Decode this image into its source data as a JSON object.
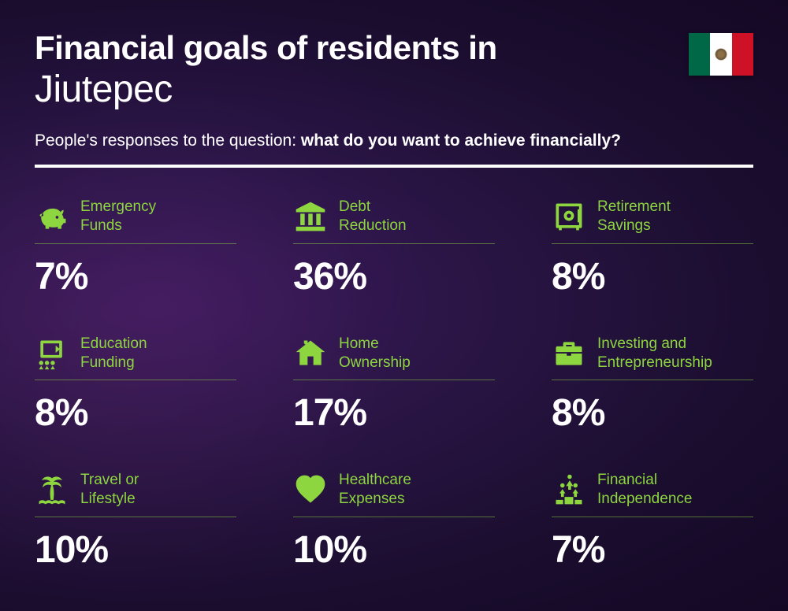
{
  "header": {
    "title_bold": "Financial goals of residents in",
    "title_light": "Jiutepec",
    "subtitle_prefix": "People's responses to the question: ",
    "subtitle_bold": "what do you want to achieve financially?"
  },
  "flag": {
    "left_color": "#006847",
    "middle_color": "#ffffff",
    "right_color": "#ce1126"
  },
  "accent_color": "#8dd63f",
  "items": [
    {
      "icon": "piggy-bank",
      "label_line1": "Emergency",
      "label_line2": "Funds",
      "percent": "7%"
    },
    {
      "icon": "bank",
      "label_line1": "Debt",
      "label_line2": "Reduction",
      "percent": "36%"
    },
    {
      "icon": "safe",
      "label_line1": "Retirement",
      "label_line2": "Savings",
      "percent": "8%"
    },
    {
      "icon": "education",
      "label_line1": "Education",
      "label_line2": "Funding",
      "percent": "8%"
    },
    {
      "icon": "house",
      "label_line1": "Home",
      "label_line2": "Ownership",
      "percent": "17%"
    },
    {
      "icon": "briefcase",
      "label_line1": "Investing and",
      "label_line2": "Entrepreneurship",
      "percent": "8%"
    },
    {
      "icon": "palm",
      "label_line1": "Travel or",
      "label_line2": "Lifestyle",
      "percent": "10%"
    },
    {
      "icon": "heart",
      "label_line1": "Healthcare",
      "label_line2": "Expenses",
      "percent": "10%"
    },
    {
      "icon": "podium",
      "label_line1": "Financial",
      "label_line2": "Independence",
      "percent": "7%"
    }
  ]
}
